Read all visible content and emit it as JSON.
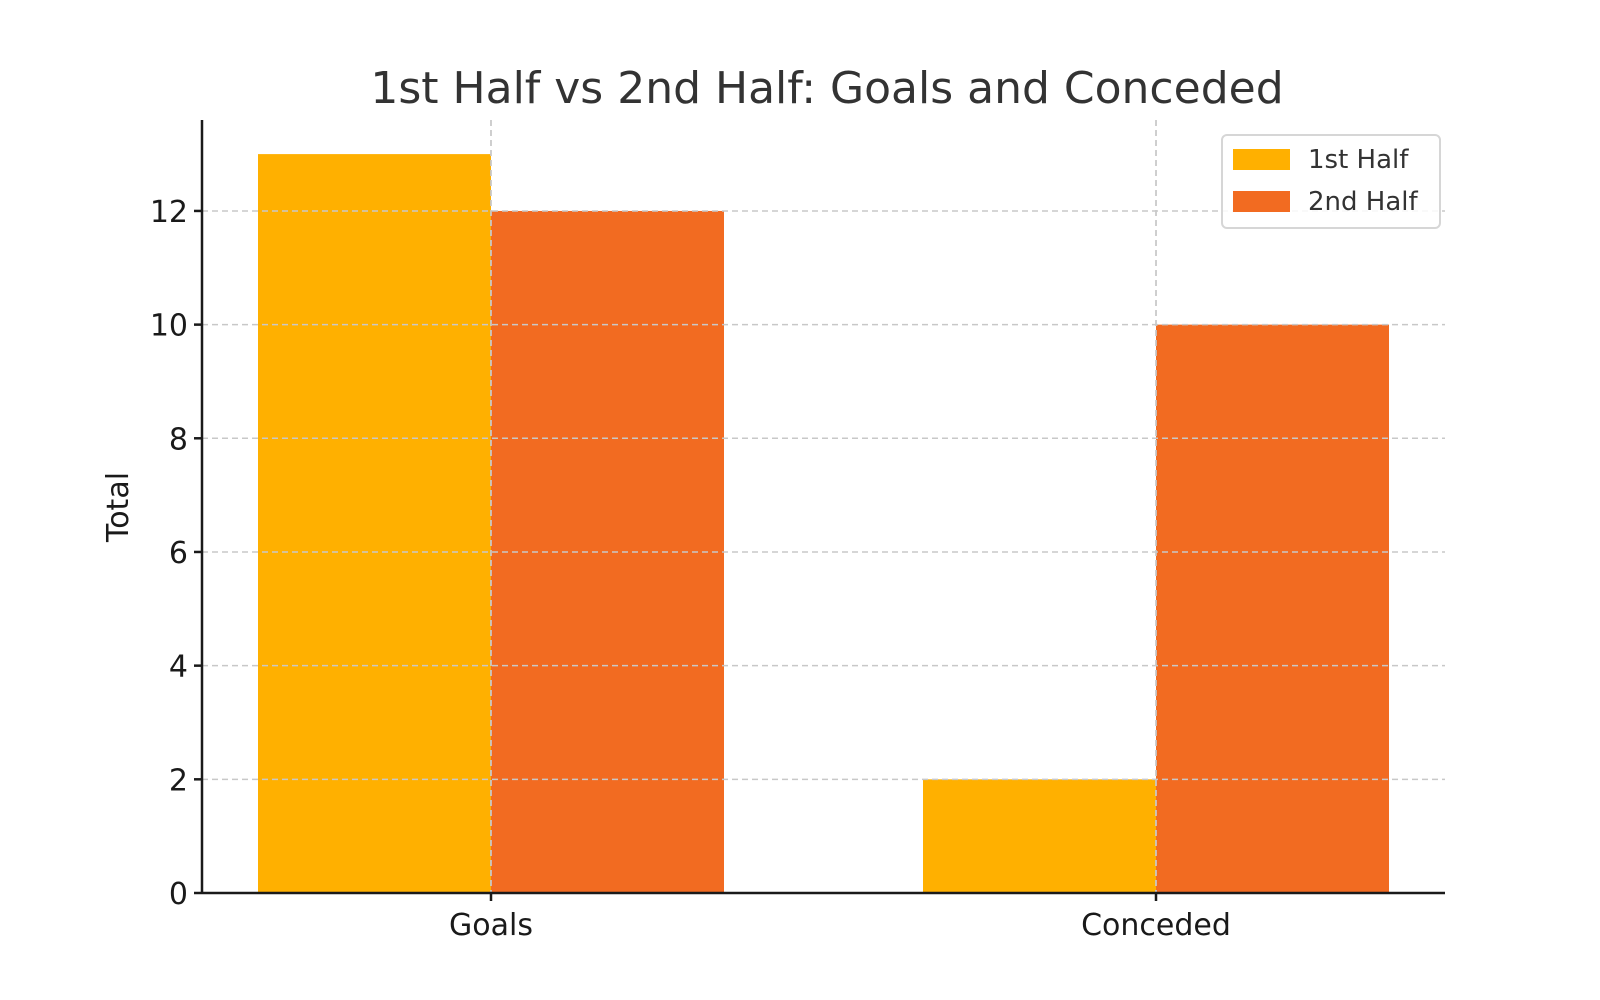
{
  "chart_data": {
    "type": "bar",
    "title": "1st Half vs 2nd Half: Goals and Conceded",
    "xlabel": "",
    "ylabel": "Total",
    "categories": [
      "Goals",
      "Conceded"
    ],
    "series": [
      {
        "name": "1st Half",
        "values": [
          13,
          2
        ],
        "color": "#FFB000"
      },
      {
        "name": "2nd Half",
        "values": [
          12,
          10
        ],
        "color": "#F26B21"
      }
    ],
    "ylim": [
      0,
      13.6
    ],
    "yticks": [
      0,
      2,
      4,
      6,
      8,
      10,
      12
    ],
    "grid": true,
    "legend_position": "top-right"
  }
}
